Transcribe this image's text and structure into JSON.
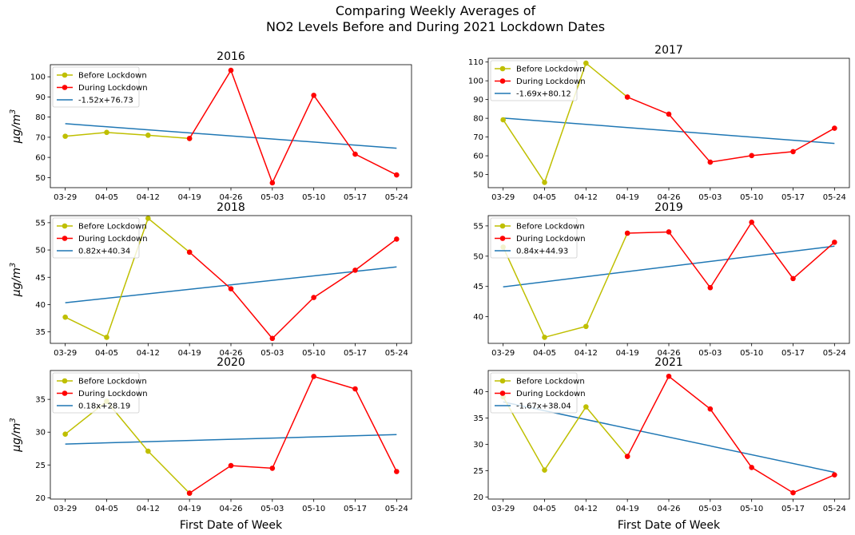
{
  "figure": {
    "title": "Comparing Weekly Averages of\nNO2 Levels Before and During 2021 Lockdown Dates",
    "ylabel_prefix": "μg/m",
    "ylabel_sup": "3",
    "xlabel": "First Date of Week"
  },
  "colors": {
    "before": "#bfbf00",
    "during": "#ff0000",
    "trend": "#1f77b4"
  },
  "chart_data": [
    {
      "type": "line",
      "title": "2016",
      "categories": [
        "03-29",
        "04-05",
        "04-12",
        "04-19",
        "04-26",
        "05-03",
        "05-10",
        "05-17",
        "05-24"
      ],
      "ylim": [
        45,
        106
      ],
      "yticks": [
        50,
        60,
        70,
        80,
        90,
        100
      ],
      "before": [
        70.5,
        72.4,
        71.0,
        69.4
      ],
      "during": [
        69.4,
        103.2,
        47.4,
        90.8,
        61.6,
        51.3
      ],
      "trend_label": "-1.52x+76.73",
      "trend": {
        "slope": -1.52,
        "intercept": 76.73
      },
      "legend": [
        "Before Lockdown",
        "During Lockdown",
        "-1.52x+76.73"
      ]
    },
    {
      "type": "line",
      "title": "2017",
      "categories": [
        "03-29",
        "04-05",
        "04-12",
        "04-19",
        "04-26",
        "05-03",
        "05-10",
        "05-17",
        "05-24"
      ],
      "ylim": [
        43,
        112
      ],
      "yticks": [
        50,
        60,
        70,
        80,
        90,
        100,
        110
      ],
      "before": [
        79.2,
        45.8,
        109.4,
        91.3
      ],
      "during": [
        91.3,
        82.2,
        56.6,
        60.1,
        62.2,
        74.7
      ],
      "trend_label": "-1.69x+80.12",
      "trend": {
        "slope": -1.69,
        "intercept": 80.12
      },
      "legend": [
        "Before Lockdown",
        "During Lockdown",
        "-1.69x+80.12"
      ]
    },
    {
      "type": "line",
      "title": "2018",
      "categories": [
        "03-29",
        "04-05",
        "04-12",
        "04-19",
        "04-26",
        "05-03",
        "05-10",
        "05-17",
        "05-24"
      ],
      "ylim": [
        32.9,
        56.3
      ],
      "yticks": [
        35,
        40,
        45,
        50,
        55
      ],
      "before": [
        37.7,
        34.0,
        55.8,
        49.6
      ],
      "during": [
        49.6,
        42.9,
        33.8,
        41.3,
        46.3,
        52.0
      ],
      "trend_label": "0.82x+40.34",
      "trend": {
        "slope": 0.82,
        "intercept": 40.34
      },
      "legend": [
        "Before Lockdown",
        "During Lockdown",
        "0.82x+40.34"
      ]
    },
    {
      "type": "line",
      "title": "2019",
      "categories": [
        "03-29",
        "04-05",
        "04-12",
        "04-19",
        "04-26",
        "05-03",
        "05-10",
        "05-17",
        "05-24"
      ],
      "ylim": [
        35.6,
        56.7
      ],
      "yticks": [
        40,
        45,
        50,
        55
      ],
      "before": [
        51.5,
        36.6,
        38.4,
        53.8
      ],
      "during": [
        53.8,
        54.0,
        44.8,
        55.6,
        46.3,
        52.3
      ],
      "trend_label": "0.84x+44.93",
      "trend": {
        "slope": 0.84,
        "intercept": 44.93
      },
      "legend": [
        "Before Lockdown",
        "During Lockdown",
        "0.84x+44.93"
      ]
    },
    {
      "type": "line",
      "title": "2020",
      "categories": [
        "03-29",
        "04-05",
        "04-12",
        "04-19",
        "04-26",
        "05-03",
        "05-10",
        "05-17",
        "05-24"
      ],
      "ylim": [
        19.8,
        39.4
      ],
      "yticks": [
        20,
        25,
        30,
        35
      ],
      "before": [
        29.7,
        34.7,
        27.1,
        20.7
      ],
      "during": [
        20.7,
        24.9,
        24.5,
        38.5,
        36.6,
        24.0
      ],
      "trend_label": "0.18x+28.19",
      "trend": {
        "slope": 0.18,
        "intercept": 28.19
      },
      "legend": [
        "Before Lockdown",
        "During Lockdown",
        "0.18x+28.19"
      ]
    },
    {
      "type": "line",
      "title": "2021",
      "categories": [
        "03-29",
        "04-05",
        "04-12",
        "04-19",
        "04-26",
        "05-03",
        "05-10",
        "05-17",
        "05-24"
      ],
      "ylim": [
        19.6,
        44.0
      ],
      "yticks": [
        20,
        25,
        30,
        35,
        40
      ],
      "before": [
        39.0,
        25.1,
        37.1,
        27.7
      ],
      "during": [
        27.7,
        42.9,
        36.7,
        25.6,
        20.8,
        24.2
      ],
      "trend_label": "-1.67x+38.04",
      "trend": {
        "slope": -1.67,
        "intercept": 38.04
      },
      "legend": [
        "Before Lockdown",
        "During Lockdown",
        "-1.67x+38.04"
      ]
    }
  ]
}
